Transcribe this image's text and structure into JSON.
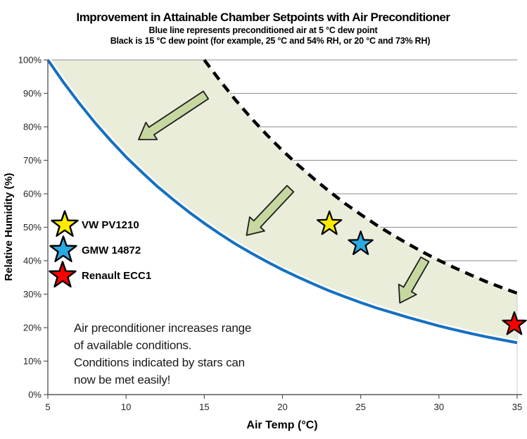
{
  "title": "Improvement in Attainable Chamber Setpoints with Air Preconditioner",
  "subtitle1": "Blue line represents preconditioned air at 5 °C dew point",
  "subtitle2": "Black is 15 °C dew point (for example, 25 °C and 54% RH, or 20 °C and 73% RH)",
  "colors": {
    "blue_line": "#1570c0",
    "black_line": "#000000",
    "band_fill": "#e9edda",
    "arrow_fill": "#c6d8a0",
    "arrow_stroke": "#1c1c1c",
    "gridline": "#8e8e8e",
    "axis": "#595959",
    "star_yellow": "#ffeb00",
    "star_blue": "#2aaae1",
    "star_red": "#fa0000",
    "star_outline": "#000000"
  },
  "chart_data": {
    "type": "line",
    "title": "Improvement in Attainable Chamber Setpoints with Air Preconditioner",
    "xlabel": "Air Temp (°C)",
    "ylabel": "Relative Humidity (%)",
    "xlim": [
      5,
      35
    ],
    "ylim": [
      0,
      100
    ],
    "x_ticks": [
      5,
      10,
      15,
      20,
      25,
      30,
      35
    ],
    "y_ticks": [
      "0%",
      "10%",
      "20%",
      "30%",
      "40%",
      "50%",
      "60%",
      "70%",
      "80%",
      "90%",
      "100%"
    ],
    "grid": "horizontal, hidden beneath shaded region",
    "legend_position": "inside plot, left middle",
    "series": [
      {
        "name": "Preconditioned air, 5 °C dew point",
        "style": "solid",
        "color": "#1570c0",
        "x": [
          5,
          6,
          7,
          8,
          9,
          10,
          11,
          12,
          13,
          14,
          15,
          16,
          17,
          18,
          19,
          20,
          21,
          22,
          23,
          24,
          25,
          26,
          27,
          28,
          29,
          30,
          31,
          32,
          33,
          34,
          35
        ],
        "rh": [
          100,
          93.3,
          87.1,
          81.3,
          76.0,
          71.0,
          66.5,
          62.2,
          58.3,
          54.6,
          51.2,
          48.0,
          45.0,
          42.3,
          39.7,
          37.3,
          35.1,
          33.0,
          31.0,
          29.2,
          27.5,
          25.9,
          24.5,
          23.1,
          21.8,
          20.5,
          19.4,
          18.3,
          17.3,
          16.4,
          15.5
        ]
      },
      {
        "name": "15 °C dew point",
        "style": "dashed",
        "color": "#000000",
        "x": [
          15,
          16,
          17,
          18,
          19,
          20,
          21,
          22,
          23,
          24,
          25,
          26,
          27,
          28,
          29,
          30,
          31,
          32,
          33,
          34,
          35
        ],
        "rh": [
          100,
          93.8,
          88.0,
          82.6,
          77.6,
          72.9,
          68.6,
          64.5,
          60.7,
          57.1,
          53.8,
          50.7,
          47.8,
          45.1,
          42.5,
          40.1,
          37.9,
          35.8,
          33.8,
          32.0,
          30.3
        ]
      }
    ],
    "stars": [
      {
        "label": "VW PV1210",
        "color": "#ffeb00",
        "t": 23,
        "rh": 51
      },
      {
        "label": "GMW 14872",
        "color": "#2aaae1",
        "t": 25,
        "rh": 45
      },
      {
        "label": "Renault ECC1",
        "color": "#fa0000",
        "t": 35,
        "rh": 21
      }
    ],
    "arrows": [
      {
        "tail_t": 15.1,
        "tail_rh": 89.5,
        "head_t": 10.8,
        "head_rh": 76.2
      },
      {
        "tail_t": 20.5,
        "tail_rh": 61.5,
        "head_t": 17.7,
        "head_rh": 47.6
      },
      {
        "tail_t": 29.1,
        "tail_rh": 40.4,
        "head_t": 27.5,
        "head_rh": 27.4
      }
    ]
  },
  "legend": {
    "items": [
      {
        "label": "VW PV1210",
        "color": "#ffeb00"
      },
      {
        "label": "GMW 14872",
        "color": "#2aaae1"
      },
      {
        "label": "Renault ECC1",
        "color": "#fa0000"
      }
    ]
  },
  "annotation": {
    "lines": [
      "Air preconditioner increases range",
      "of available conditions.",
      "Conditions indicated by stars can",
      "now be met easily!"
    ]
  }
}
